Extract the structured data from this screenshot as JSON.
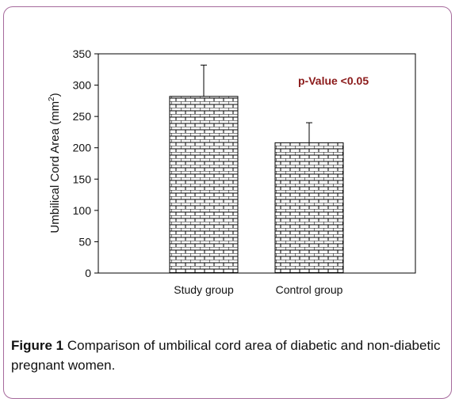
{
  "chart_data": {
    "type": "bar",
    "categories": [
      "Study group",
      "Control group"
    ],
    "values": [
      282,
      208
    ],
    "error_upper": [
      332,
      240
    ],
    "ylabel_main": "Umbilical Cord Area (mm",
    "ylabel_sup": "2",
    "ylabel_end": ")",
    "ylim": [
      0,
      350
    ],
    "yticks": [
      0,
      50,
      100,
      150,
      200,
      250,
      300,
      350
    ],
    "annotation": "p-Value <0.05",
    "annotation_color": "#8b1a1a",
    "bar_pattern": "brick",
    "grid": false
  },
  "caption": {
    "label": "Figure 1",
    "text": " Comparison of umbilical cord area of diabetic and non-diabetic pregnant women."
  }
}
